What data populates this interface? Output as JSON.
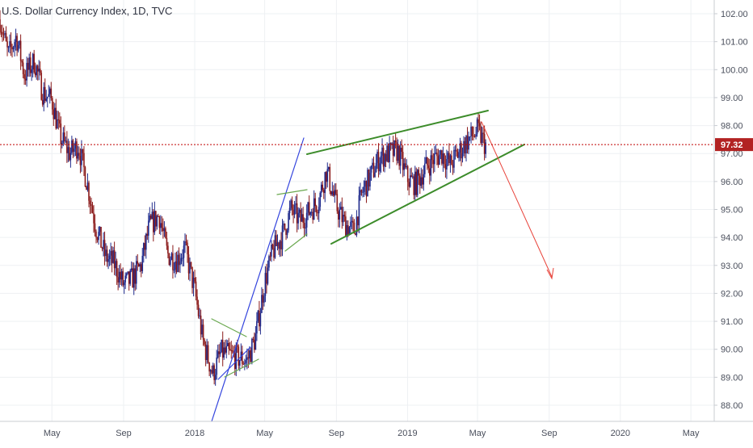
{
  "title": "U.S. Dollar Currency Index, 1D, TVC",
  "last_price_label": "97.32",
  "colors": {
    "up_candle": "#1f2a8c",
    "down_candle": "#8b1a1a",
    "channel_lines": "#3344dd",
    "wedge_lines": "#3c8c2a",
    "flag_lines": "#6aa84f",
    "arrow": "#e8433a",
    "price_line": "#c00000",
    "price_badge": "#b22222"
  },
  "chart_data": {
    "type": "candlestick",
    "title": "U.S. Dollar Currency Index, 1D, TVC",
    "ylim": [
      87.6,
      102.3
    ],
    "y_ticks": [
      "102.00",
      "101.00",
      "100.00",
      "99.00",
      "98.00",
      "97.00",
      "96.00",
      "95.00",
      "94.00",
      "93.00",
      "92.00",
      "91.00",
      "90.00",
      "89.00",
      "88.00"
    ],
    "x_ticks": [
      "May",
      "Sep",
      "2018",
      "May",
      "Sep",
      "2019",
      "May",
      "Sep",
      "2020",
      "May"
    ],
    "x_range": [
      "2017-02-01",
      "2020-06-10"
    ],
    "last_price": 97.32,
    "series": [
      {
        "x": [
          "2017-02-01",
          "2017-02-15",
          "2017-03-01",
          "2017-03-15",
          "2017-04-01",
          "2017-04-15",
          "2017-05-01",
          "2017-05-15",
          "2017-06-01",
          "2017-06-15",
          "2017-07-01",
          "2017-07-15",
          "2017-08-01",
          "2017-08-15",
          "2017-09-01",
          "2017-09-15",
          "2017-10-01",
          "2017-10-15",
          "2017-11-01",
          "2017-11-15",
          "2017-12-01",
          "2017-12-15",
          "2018-01-01",
          "2018-01-15",
          "2018-02-01",
          "2018-02-15",
          "2018-03-01",
          "2018-03-15",
          "2018-04-01",
          "2018-04-15",
          "2018-05-01",
          "2018-05-15",
          "2018-06-01",
          "2018-06-15",
          "2018-07-01",
          "2018-07-15",
          "2018-08-01",
          "2018-08-15",
          "2018-09-01",
          "2018-09-15",
          "2018-10-01",
          "2018-10-15",
          "2018-11-01",
          "2018-11-15",
          "2018-12-01",
          "2018-12-15",
          "2019-01-01",
          "2019-01-15",
          "2019-02-01",
          "2019-02-15",
          "2019-03-01",
          "2019-03-15",
          "2019-04-01",
          "2019-04-15",
          "2019-05-01",
          "2019-05-15"
        ],
        "close": [
          101.8,
          100.5,
          101.2,
          99.8,
          100.3,
          99.2,
          98.9,
          97.6,
          97.0,
          97.3,
          95.9,
          94.4,
          93.3,
          93.1,
          92.3,
          92.5,
          93.0,
          94.4,
          94.8,
          93.4,
          93.2,
          93.6,
          92.1,
          90.3,
          89.1,
          89.9,
          89.8,
          89.7,
          89.6,
          90.4,
          92.4,
          93.5,
          94.1,
          95.0,
          94.6,
          94.9,
          95.3,
          96.4,
          95.1,
          94.5,
          94.2,
          95.6,
          96.3,
          96.9,
          97.0,
          97.1,
          96.1,
          95.9,
          96.5,
          96.8,
          97.0,
          96.6,
          97.1,
          97.5,
          97.8,
          97.3
        ]
      }
    ],
    "annotations": [
      "ascending channel",
      "rising wedge",
      "bear flag",
      "bull flag",
      "projected decline arrow"
    ]
  }
}
